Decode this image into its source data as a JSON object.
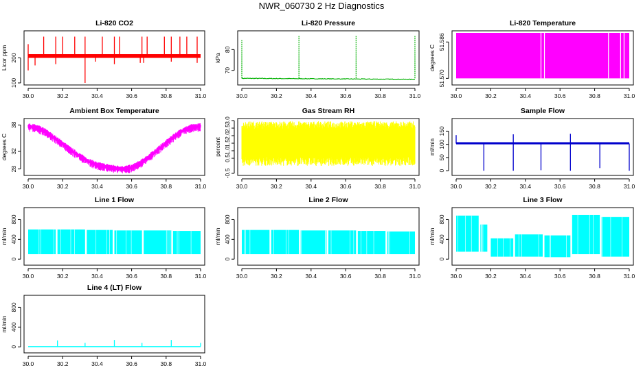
{
  "page": {
    "title": "NWR_060730  2 Hz Diagnostics"
  },
  "chart_data": [
    {
      "type": "line",
      "title": "Li-820 CO2",
      "ylabel": "Licor ppm",
      "color": "#ff0000",
      "xlim": [
        30.0,
        31.0
      ],
      "ylim": [
        100,
        300
      ],
      "yticks": [
        100,
        200
      ],
      "xticks": [
        30.0,
        30.2,
        30.4,
        30.6,
        30.8,
        31.0
      ],
      "tick_labels_x": [
        "30.0",
        "30.2",
        "30.4",
        "30.6",
        "30.8",
        "31.0"
      ],
      "tick_labels_y": [
        "100",
        "200"
      ],
      "series": [
        {
          "baseline": 205,
          "band_low": 200,
          "band_high": 215,
          "spikes_up": [
            [
              30.0,
              255
            ],
            [
              30.09,
              285
            ],
            [
              30.16,
              285
            ],
            [
              30.2,
              285
            ],
            [
              30.27,
              285
            ],
            [
              30.33,
              285
            ],
            [
              30.43,
              285
            ],
            [
              30.5,
              285
            ],
            [
              30.53,
              285
            ],
            [
              30.66,
              285
            ],
            [
              30.69,
              285
            ],
            [
              30.79,
              285
            ],
            [
              30.83,
              285
            ],
            [
              30.88,
              285
            ],
            [
              30.92,
              285
            ],
            [
              30.98,
              285
            ]
          ],
          "spikes_down": [
            [
              30.0,
              150
            ],
            [
              30.04,
              170
            ],
            [
              30.16,
              175
            ],
            [
              30.33,
              100
            ],
            [
              30.39,
              185
            ],
            [
              30.5,
              175
            ],
            [
              30.65,
              180
            ],
            [
              30.67,
              180
            ],
            [
              30.83,
              185
            ],
            [
              30.98,
              180
            ]
          ]
        }
      ]
    },
    {
      "type": "line",
      "title": "Li-820 Pressure",
      "ylabel": "kPa",
      "color": "#00b000",
      "xlim": [
        30.0,
        31.0
      ],
      "ylim": [
        64,
        88
      ],
      "yticks": [
        70,
        80
      ],
      "xticks": [
        30.0,
        30.2,
        30.4,
        30.6,
        30.8,
        31.0
      ],
      "tick_labels_x": [
        "30.0",
        "30.2",
        "30.4",
        "30.6",
        "30.8",
        "31.0"
      ],
      "tick_labels_y": [
        "70",
        "80"
      ],
      "series": [
        {
          "baseline_start": 66.2,
          "baseline_end": 65.7,
          "spikes_up": [
            [
              30.0,
              84.5
            ],
            [
              30.33,
              86.5
            ],
            [
              30.66,
              86.5
            ],
            [
              31.0,
              86.5
            ]
          ],
          "spikes_down": []
        }
      ]
    },
    {
      "type": "area",
      "title": "Li-820 Temperature",
      "ylabel": "degrees C",
      "color": "#ff00ff",
      "xlim": [
        30.0,
        31.0
      ],
      "ylim": [
        51.568,
        51.59
      ],
      "yticks": [
        51.57,
        51.586
      ],
      "xticks": [
        30.0,
        30.2,
        30.4,
        30.6,
        30.8,
        31.0
      ],
      "tick_labels_x": [
        "30.0",
        "30.2",
        "30.4",
        "30.6",
        "30.8",
        "31.0"
      ],
      "tick_labels_y": [
        "51.570",
        "51.586"
      ],
      "series": [
        {
          "fill_low": 51.57,
          "fill_high": 51.59,
          "gaps": [
            30.49,
            30.51,
            30.88,
            30.95,
            30.97
          ]
        }
      ]
    },
    {
      "type": "line",
      "title": "Ambient Box Temperature",
      "ylabel": "degrees C",
      "color": "#ff00ff",
      "xlim": [
        30.0,
        31.0
      ],
      "ylim": [
        27,
        39
      ],
      "yticks": [
        28,
        32,
        38
      ],
      "xticks": [
        30.0,
        30.2,
        30.4,
        30.6,
        30.8,
        31.0
      ],
      "tick_labels_x": [
        "30.0",
        "30.2",
        "30.4",
        "30.6",
        "30.8",
        "31.0"
      ],
      "tick_labels_y": [
        "28",
        "32",
        "38"
      ],
      "series": [
        {
          "points": [
            [
              30.0,
              37.8
            ],
            [
              30.05,
              37.5
            ],
            [
              30.1,
              36.6
            ],
            [
              30.15,
              35.2
            ],
            [
              30.2,
              33.8
            ],
            [
              30.25,
              32.3
            ],
            [
              30.3,
              31.0
            ],
            [
              30.35,
              29.8
            ],
            [
              30.4,
              29.0
            ],
            [
              30.45,
              28.6
            ],
            [
              30.5,
              28.3
            ],
            [
              30.55,
              28.1
            ],
            [
              30.6,
              28.4
            ],
            [
              30.65,
              29.4
            ],
            [
              30.7,
              30.8
            ],
            [
              30.75,
              32.4
            ],
            [
              30.8,
              34.0
            ],
            [
              30.85,
              35.6
            ],
            [
              30.9,
              36.9
            ],
            [
              30.95,
              37.6
            ],
            [
              31.0,
              37.8
            ]
          ],
          "noise": 0.9
        }
      ]
    },
    {
      "type": "line",
      "title": "Gas Stream RH",
      "ylabel": "percent",
      "color": "#ffff00",
      "xlim": [
        30.0,
        31.0
      ],
      "ylim": [
        -0.5,
        3.0
      ],
      "yticks": [
        -0.5,
        0.5,
        1.0,
        1.5,
        2.0,
        2.5,
        3.0
      ],
      "xticks": [
        30.0,
        30.2,
        30.4,
        30.6,
        30.8,
        31.0
      ],
      "tick_labels_x": [
        "30.0",
        "30.2",
        "30.4",
        "30.6",
        "30.8",
        "31.0"
      ],
      "tick_labels_y": [
        "-0.5",
        "0.5",
        "1.0",
        "1.5",
        "2.0",
        "2.5",
        "3.0"
      ],
      "series": [
        {
          "band_low": 0.3,
          "band_high": 2.7,
          "extreme_low": -0.4,
          "extreme_high": 3.0
        }
      ]
    },
    {
      "type": "line",
      "title": "Sample Flow",
      "ylabel": "ml/min",
      "color": "#0000cc",
      "xlim": [
        30.0,
        31.0
      ],
      "ylim": [
        -10,
        190
      ],
      "yticks": [
        0,
        50,
        100,
        150
      ],
      "xticks": [
        30.0,
        30.2,
        30.4,
        30.6,
        30.8,
        31.0
      ],
      "tick_labels_x": [
        "30.0",
        "30.2",
        "30.4",
        "30.6",
        "30.8",
        "31.0"
      ],
      "tick_labels_y": [
        "0",
        "50",
        "100",
        "150"
      ],
      "series": [
        {
          "baseline": 103,
          "band_low": 100,
          "band_high": 108,
          "spikes_up": [
            [
              30.0,
              135
            ],
            [
              30.33,
              138
            ],
            [
              30.66,
              140
            ]
          ],
          "spikes_down": [
            [
              30.16,
              0
            ],
            [
              30.33,
              0
            ],
            [
              30.49,
              2
            ],
            [
              30.66,
              0
            ],
            [
              30.83,
              10
            ],
            [
              31.0,
              0
            ]
          ]
        }
      ]
    },
    {
      "type": "area",
      "title": "Line 1 Flow",
      "ylabel": "ml/min",
      "color": "#00ffff",
      "xlim": [
        30.0,
        31.0
      ],
      "ylim": [
        -80,
        1000
      ],
      "yticks": [
        0,
        400,
        800
      ],
      "xticks": [
        30.0,
        30.2,
        30.4,
        30.6,
        30.8,
        31.0
      ],
      "tick_labels_x": [
        "30.0",
        "30.2",
        "30.4",
        "30.6",
        "30.8",
        "31.0"
      ],
      "tick_labels_y": [
        "0",
        "400",
        "800"
      ],
      "series": [
        {
          "segments": [
            [
              30.0,
              30.16,
              100,
              600
            ],
            [
              30.17,
              30.33,
              100,
              600
            ],
            [
              30.34,
              30.49,
              100,
              590
            ],
            [
              30.5,
              30.66,
              100,
              580
            ],
            [
              30.67,
              30.83,
              100,
              580
            ],
            [
              30.84,
              31.0,
              100,
              570
            ]
          ]
        }
      ]
    },
    {
      "type": "area",
      "title": "Line 2 Flow",
      "ylabel": "ml/min",
      "color": "#00ffff",
      "xlim": [
        30.0,
        31.0
      ],
      "ylim": [
        -80,
        1000
      ],
      "yticks": [
        0,
        400,
        800
      ],
      "xticks": [
        30.0,
        30.2,
        30.4,
        30.6,
        30.8,
        31.0
      ],
      "tick_labels_x": [
        "30.0",
        "30.2",
        "30.4",
        "30.6",
        "30.8",
        "31.0"
      ],
      "tick_labels_y": [
        "0",
        "400",
        "800"
      ],
      "series": [
        {
          "segments": [
            [
              30.0,
              30.16,
              100,
              590
            ],
            [
              30.17,
              30.33,
              100,
              590
            ],
            [
              30.34,
              30.49,
              100,
              580
            ],
            [
              30.5,
              30.66,
              100,
              580
            ],
            [
              30.67,
              30.83,
              100,
              570
            ],
            [
              30.84,
              31.0,
              100,
              560
            ]
          ]
        }
      ]
    },
    {
      "type": "area",
      "title": "Line 3 Flow",
      "ylabel": "ml/min",
      "color": "#00ffff",
      "xlim": [
        30.0,
        31.0
      ],
      "ylim": [
        -80,
        1000
      ],
      "yticks": [
        0,
        400,
        800
      ],
      "xticks": [
        30.0,
        30.2,
        30.4,
        30.6,
        30.8,
        31.0
      ],
      "tick_labels_x": [
        "30.0",
        "30.2",
        "30.4",
        "30.6",
        "30.8",
        "31.0"
      ],
      "tick_labels_y": [
        "0",
        "400",
        "800"
      ],
      "series": [
        {
          "segments": [
            [
              30.0,
              30.13,
              150,
              880
            ],
            [
              30.14,
              30.18,
              150,
              700
            ],
            [
              30.2,
              30.33,
              50,
              420
            ],
            [
              30.34,
              30.5,
              50,
              500
            ],
            [
              30.51,
              30.66,
              40,
              480
            ],
            [
              30.67,
              30.83,
              100,
              890
            ],
            [
              30.84,
              31.0,
              50,
              850
            ]
          ]
        }
      ]
    },
    {
      "type": "line",
      "title": "Line 4 (LT) Flow",
      "ylabel": "ml/min",
      "color": "#00ffff",
      "xlim": [
        30.0,
        31.0
      ],
      "ylim": [
        -80,
        1000
      ],
      "yticks": [
        0,
        400,
        800
      ],
      "xticks": [
        30.0,
        30.2,
        30.4,
        30.6,
        30.8,
        31.0
      ],
      "tick_labels_x": [
        "30.0",
        "30.2",
        "30.4",
        "30.6",
        "30.8",
        "31.0"
      ],
      "tick_labels_y": [
        "0",
        "400",
        "800"
      ],
      "series": [
        {
          "baseline": 10,
          "band_low": 5,
          "band_high": 15,
          "spikes_up": [
            [
              30.17,
              130
            ],
            [
              30.33,
              80
            ],
            [
              30.5,
              140
            ],
            [
              30.66,
              80
            ],
            [
              30.83,
              140
            ],
            [
              31.0,
              80
            ]
          ],
          "spikes_down": []
        }
      ]
    }
  ]
}
